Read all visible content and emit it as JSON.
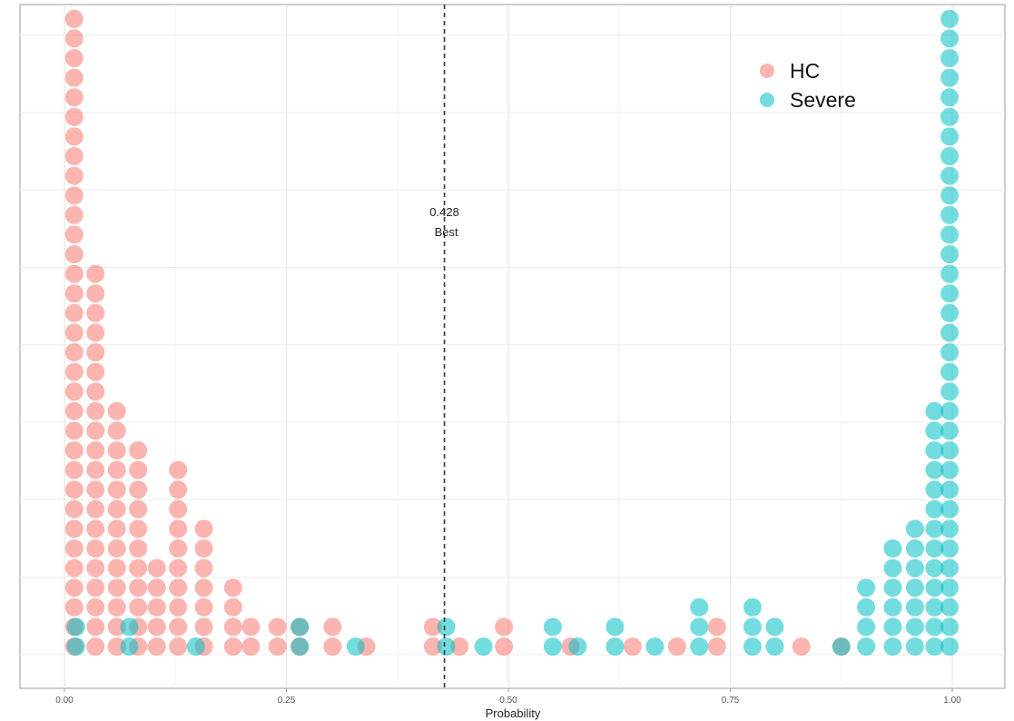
{
  "chart_data": {
    "type": "dotplot",
    "xlabel": "Probability",
    "ylabel": "",
    "xlim": [
      -0.025,
      1.025
    ],
    "x_ticks": [
      {
        "value": 0.0,
        "label": "0.00"
      },
      {
        "value": 0.25,
        "label": "0.25"
      },
      {
        "value": 0.5,
        "label": "0.50"
      },
      {
        "value": 0.75,
        "label": "0.75"
      },
      {
        "value": 1.0,
        "label": "1.00"
      }
    ],
    "grid": true,
    "legend_position": "top-right",
    "threshold": {
      "value": 0.428,
      "label": "0.428",
      "sublabel": "Best",
      "style": "dashed"
    },
    "series": [
      {
        "name": "HC",
        "color": "#f8766d",
        "stacks": [
          {
            "x": 0.011,
            "count": 33
          },
          {
            "x": 0.035,
            "count": 20
          },
          {
            "x": 0.059,
            "count": 13
          },
          {
            "x": 0.083,
            "count": 11
          },
          {
            "x": 0.104,
            "count": 5
          },
          {
            "x": 0.128,
            "count": 10
          },
          {
            "x": 0.157,
            "count": 7
          },
          {
            "x": 0.19,
            "count": 4
          },
          {
            "x": 0.21,
            "count": 2
          },
          {
            "x": 0.24,
            "count": 2
          },
          {
            "x": 0.265,
            "count": 2
          },
          {
            "x": 0.302,
            "count": 2
          },
          {
            "x": 0.34,
            "count": 1
          },
          {
            "x": 0.415,
            "count": 2
          },
          {
            "x": 0.445,
            "count": 1
          },
          {
            "x": 0.495,
            "count": 2
          },
          {
            "x": 0.57,
            "count": 1
          },
          {
            "x": 0.64,
            "count": 1
          },
          {
            "x": 0.69,
            "count": 1
          },
          {
            "x": 0.735,
            "count": 2
          },
          {
            "x": 0.83,
            "count": 1
          },
          {
            "x": 0.875,
            "count": 1
          }
        ]
      },
      {
        "name": "Severe",
        "color": "#00bfc4",
        "stacks": [
          {
            "x": 0.013,
            "count": 2
          },
          {
            "x": 0.073,
            "count": 2
          },
          {
            "x": 0.148,
            "count": 1
          },
          {
            "x": 0.265,
            "count": 2
          },
          {
            "x": 0.328,
            "count": 1
          },
          {
            "x": 0.43,
            "count": 2
          },
          {
            "x": 0.472,
            "count": 1
          },
          {
            "x": 0.55,
            "count": 2
          },
          {
            "x": 0.578,
            "count": 1
          },
          {
            "x": 0.62,
            "count": 2
          },
          {
            "x": 0.665,
            "count": 1
          },
          {
            "x": 0.715,
            "count": 3
          },
          {
            "x": 0.775,
            "count": 3
          },
          {
            "x": 0.8,
            "count": 2
          },
          {
            "x": 0.875,
            "count": 1
          },
          {
            "x": 0.903,
            "count": 4
          },
          {
            "x": 0.933,
            "count": 6
          },
          {
            "x": 0.958,
            "count": 7
          },
          {
            "x": 0.98,
            "count": 13
          },
          {
            "x": 0.997,
            "count": 33
          }
        ]
      }
    ]
  }
}
